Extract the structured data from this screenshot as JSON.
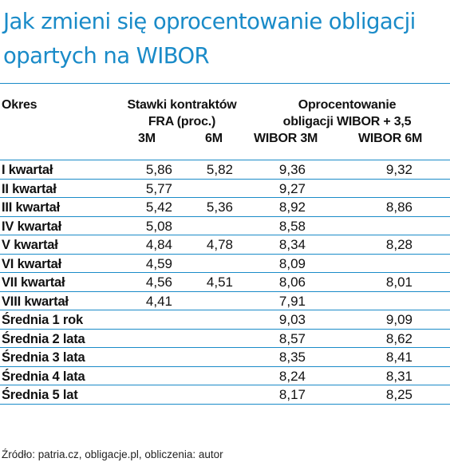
{
  "title": {
    "line1": "Jak zmieni się oprocentowanie obligacji",
    "line2": "opartych na WIBOR"
  },
  "chart_data": {
    "type": "table",
    "headers": {
      "okres": "Okres",
      "fra_line1": "Stawki kontraktów",
      "fra_line2": "FRA (proc.)",
      "fra_3m": "3M",
      "fra_6m": "6M",
      "opr_line1": "Oprocentowanie",
      "opr_line2": "obligacji WIBOR + 3,5",
      "opr_3m": "WIBOR 3M",
      "opr_6m": "WIBOR 6M"
    },
    "rows": [
      {
        "label": "I kwartał",
        "fra3m": "5,86",
        "fra6m": "5,82",
        "w3m": "9,36",
        "w6m": "9,32"
      },
      {
        "label": "II kwartał",
        "fra3m": "5,77",
        "fra6m": "",
        "w3m": "9,27",
        "w6m": ""
      },
      {
        "label": "III kwartał",
        "fra3m": "5,42",
        "fra6m": "5,36",
        "w3m": "8,92",
        "w6m": "8,86"
      },
      {
        "label": "IV kwartał",
        "fra3m": "5,08",
        "fra6m": "",
        "w3m": "8,58",
        "w6m": ""
      },
      {
        "label": "V kwartał",
        "fra3m": "4,84",
        "fra6m": "4,78",
        "w3m": "8,34",
        "w6m": "8,28"
      },
      {
        "label": "VI kwartał",
        "fra3m": "4,59",
        "fra6m": "",
        "w3m": "8,09",
        "w6m": ""
      },
      {
        "label": "VII kwartał",
        "fra3m": "4,56",
        "fra6m": "4,51",
        "w3m": "8,06",
        "w6m": "8,01"
      },
      {
        "label": "VIII kwartał",
        "fra3m": "4,41",
        "fra6m": "",
        "w3m": "7,91",
        "w6m": ""
      },
      {
        "label": "Średnia 1 rok",
        "fra3m": "",
        "fra6m": "",
        "w3m": "9,03",
        "w6m": "9,09"
      },
      {
        "label": "Średnia 2 lata",
        "fra3m": "",
        "fra6m": "",
        "w3m": "8,57",
        "w6m": "8,62"
      },
      {
        "label": "Średnia 3 lata",
        "fra3m": "",
        "fra6m": "",
        "w3m": "8,35",
        "w6m": "8,41"
      },
      {
        "label": "Średnia 4 lata",
        "fra3m": "",
        "fra6m": "",
        "w3m": "8,24",
        "w6m": "8,31"
      },
      {
        "label": "Średnia 5 lat",
        "fra3m": "",
        "fra6m": "",
        "w3m": "8,17",
        "w6m": "8,25"
      }
    ]
  },
  "source": "Źródło: patria.cz, obligacje.pl, obliczenia: autor",
  "colors": {
    "accent": "#1a8bc8",
    "text": "#111111"
  }
}
